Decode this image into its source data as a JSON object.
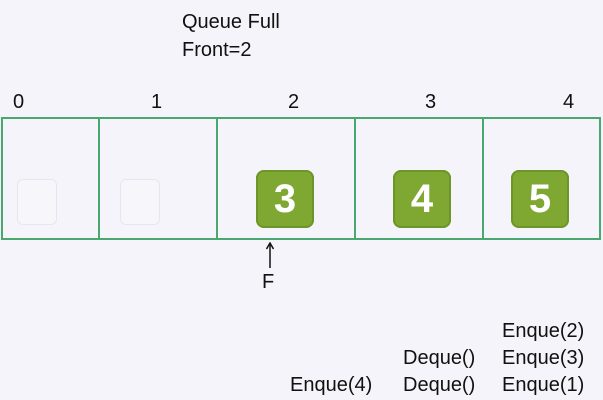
{
  "header": {
    "title": "Queue Full",
    "front": "Front=2"
  },
  "queue": {
    "indices": [
      "0",
      "1",
      "2",
      "3",
      "4"
    ],
    "cells": [
      {
        "index": "0",
        "value": ""
      },
      {
        "index": "1",
        "value": ""
      },
      {
        "index": "2",
        "value": "3"
      },
      {
        "index": "3",
        "value": "4"
      },
      {
        "index": "4",
        "value": "5"
      }
    ],
    "tile_color": "#7fa832",
    "border_color": "#49a86f"
  },
  "pointer": {
    "label": "F",
    "icon": "up-arrow-icon"
  },
  "operations": {
    "col3": [
      "Enque(2)",
      "Enque(3)",
      "Enque(1)"
    ],
    "col2": [
      "Deque()",
      "Deque()"
    ],
    "col1": [
      "Enque(4)"
    ]
  }
}
